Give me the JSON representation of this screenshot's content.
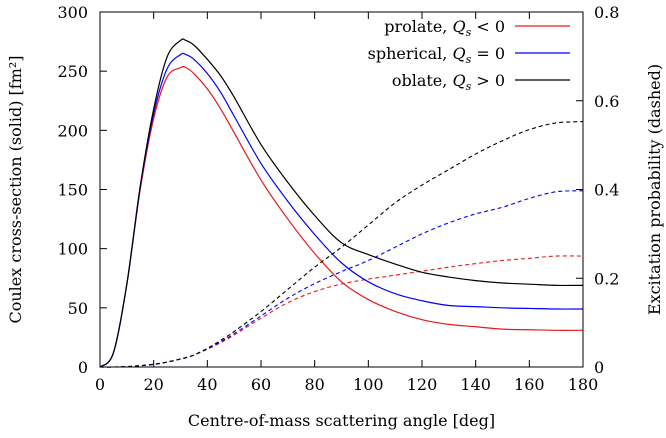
{
  "chart_data": {
    "type": "line",
    "title": "",
    "xlabel": "Centre-of-mass scattering angle [deg]",
    "ylabel_left": "Coulex cross-section (solid) [fm²]",
    "ylabel_right": "Excitation probability (dashed)",
    "xlim": [
      0,
      180
    ],
    "ylim_left": [
      0,
      300
    ],
    "ylim_right": [
      0,
      0.8
    ],
    "x_ticks": [
      0,
      20,
      40,
      60,
      80,
      100,
      120,
      140,
      160,
      180
    ],
    "x_tick_labels": [
      "0",
      "20",
      "40",
      "60",
      "80",
      "100",
      "120",
      "140",
      "160",
      "180"
    ],
    "y_left_ticks": [
      0,
      50,
      100,
      150,
      200,
      250,
      300
    ],
    "y_left_tick_labels": [
      "0",
      "50",
      "100",
      "150",
      "200",
      "250",
      "300"
    ],
    "y_right_ticks": [
      0,
      0.2,
      0.4,
      0.6,
      0.8
    ],
    "y_right_tick_labels": [
      "0",
      "0.2",
      "0.4",
      "0.6",
      "0.8"
    ],
    "grid": false,
    "legend_position": "top-right",
    "legend": [
      {
        "label_text": "prolate, ",
        "label_math": "Q",
        "label_sub": "s",
        "label_rel": " < 0",
        "color": "#e41a1c"
      },
      {
        "label_text": "spherical, ",
        "label_math": "Q",
        "label_sub": "s",
        "label_rel": " = 0",
        "color": "#0000ff"
      },
      {
        "label_text": "oblate, ",
        "label_math": "Q",
        "label_sub": "s",
        "label_rel": " > 0",
        "color": "#000000"
      }
    ],
    "x": [
      0,
      5,
      10,
      15,
      20,
      25,
      30,
      32,
      35,
      40,
      45,
      50,
      60,
      70,
      80,
      90,
      100,
      110,
      120,
      130,
      140,
      150,
      160,
      170,
      180
    ],
    "series": [
      {
        "name": "prolate, Qs < 0",
        "color": "#e41a1c",
        "cross_section": [
          0,
          12,
          70,
          150,
          210,
          245,
          253,
          253,
          248,
          235,
          218,
          198,
          158,
          125,
          96,
          72,
          57,
          47,
          40,
          36,
          34,
          32,
          31.5,
          31,
          31
        ],
        "probability": [
          0,
          0,
          0.001,
          0.003,
          0.006,
          0.011,
          0.018,
          0.021,
          0.027,
          0.04,
          0.055,
          0.072,
          0.11,
          0.145,
          0.17,
          0.187,
          0.198,
          0.207,
          0.216,
          0.225,
          0.233,
          0.24,
          0.245,
          0.25,
          0.25
        ]
      },
      {
        "name": "spherical, Qs = 0",
        "color": "#0000ff",
        "cross_section": [
          0,
          12,
          70,
          152,
          214,
          252,
          264,
          264,
          260,
          248,
          232,
          212,
          172,
          140,
          112,
          88,
          72,
          62,
          56,
          52,
          51,
          50,
          49.5,
          49,
          49
        ],
        "probability": [
          0,
          0,
          0.001,
          0.003,
          0.006,
          0.011,
          0.018,
          0.021,
          0.027,
          0.041,
          0.057,
          0.075,
          0.115,
          0.155,
          0.188,
          0.215,
          0.24,
          0.27,
          0.3,
          0.325,
          0.345,
          0.36,
          0.38,
          0.395,
          0.397
        ]
      },
      {
        "name": "oblate, Qs > 0",
        "color": "#000000",
        "cross_section": [
          0,
          12,
          70,
          153,
          218,
          262,
          276,
          276,
          272,
          260,
          246,
          228,
          188,
          156,
          128,
          105,
          95,
          87,
          80,
          76,
          73,
          71,
          70,
          69,
          69
        ],
        "probability": [
          0,
          0,
          0.001,
          0.003,
          0.006,
          0.011,
          0.018,
          0.021,
          0.027,
          0.042,
          0.06,
          0.08,
          0.125,
          0.175,
          0.225,
          0.27,
          0.32,
          0.37,
          0.41,
          0.445,
          0.48,
          0.51,
          0.535,
          0.55,
          0.553
        ]
      }
    ]
  }
}
